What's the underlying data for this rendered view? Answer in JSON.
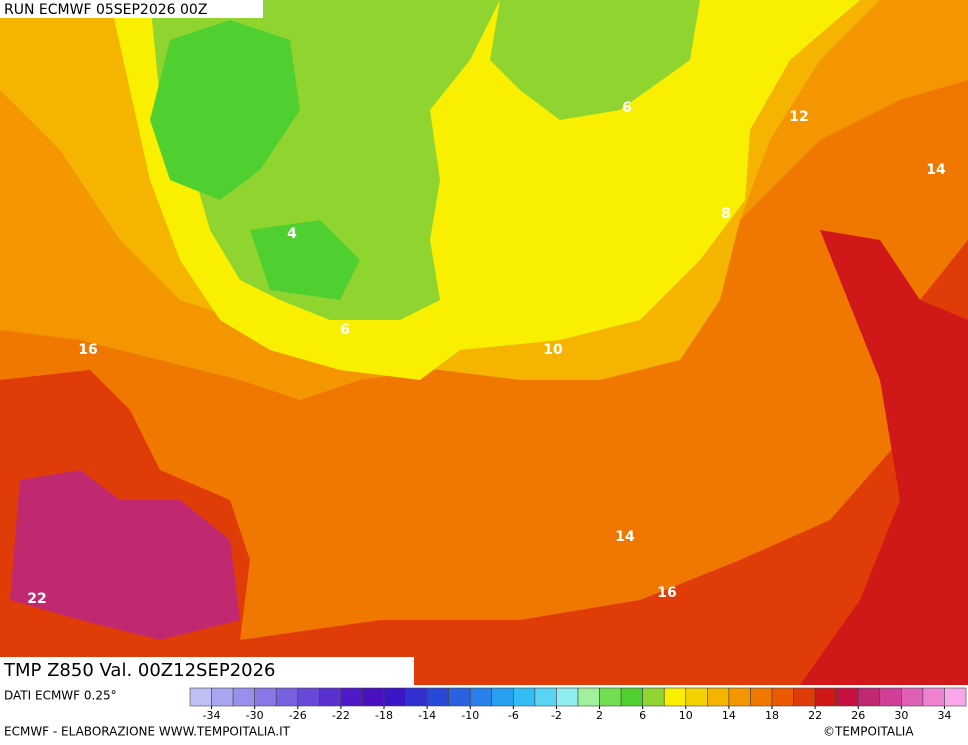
{
  "header": {
    "run": "RUN ECMWF 05SEP2026 00Z"
  },
  "map": {
    "field": "TMP Z850 Val. 00Z12SEP2026",
    "contour_labels": [
      6,
      12,
      14,
      8,
      4,
      6,
      16,
      10,
      14,
      16,
      22
    ]
  },
  "footer": {
    "source": "DATI ECMWF 0.25°",
    "credit": "ECMWF - ELABORAZIONE WWW.TEMPOITALIA.IT",
    "copyright": "©TEMPOITALIA"
  },
  "colorbar": {
    "range": [
      -36,
      36
    ],
    "ticks": [
      -34,
      -30,
      -26,
      -22,
      -18,
      -14,
      -10,
      -6,
      -2,
      2,
      6,
      10,
      14,
      18,
      22,
      26,
      30,
      34
    ],
    "colors": [
      "#c0c0f4",
      "#a8a8f0",
      "#9890ec",
      "#8878e6",
      "#7860e0",
      "#6848d8",
      "#5a30d0",
      "#5018c8",
      "#4810c0",
      "#3c14c8",
      "#3030d0",
      "#2848d8",
      "#2862e0",
      "#2880e8",
      "#28a0f0",
      "#30bef4",
      "#5ad4f4",
      "#90eef0",
      "#a0f0a0",
      "#70e050",
      "#50d030",
      "#90d430",
      "#f8f000",
      "#f4d200",
      "#f4b400",
      "#f49600",
      "#f07800",
      "#ec5a00",
      "#e03c08",
      "#d01818",
      "#c81040",
      "#c02870",
      "#d04098",
      "#e060b8",
      "#f080d0",
      "#f8a8e8"
    ]
  }
}
